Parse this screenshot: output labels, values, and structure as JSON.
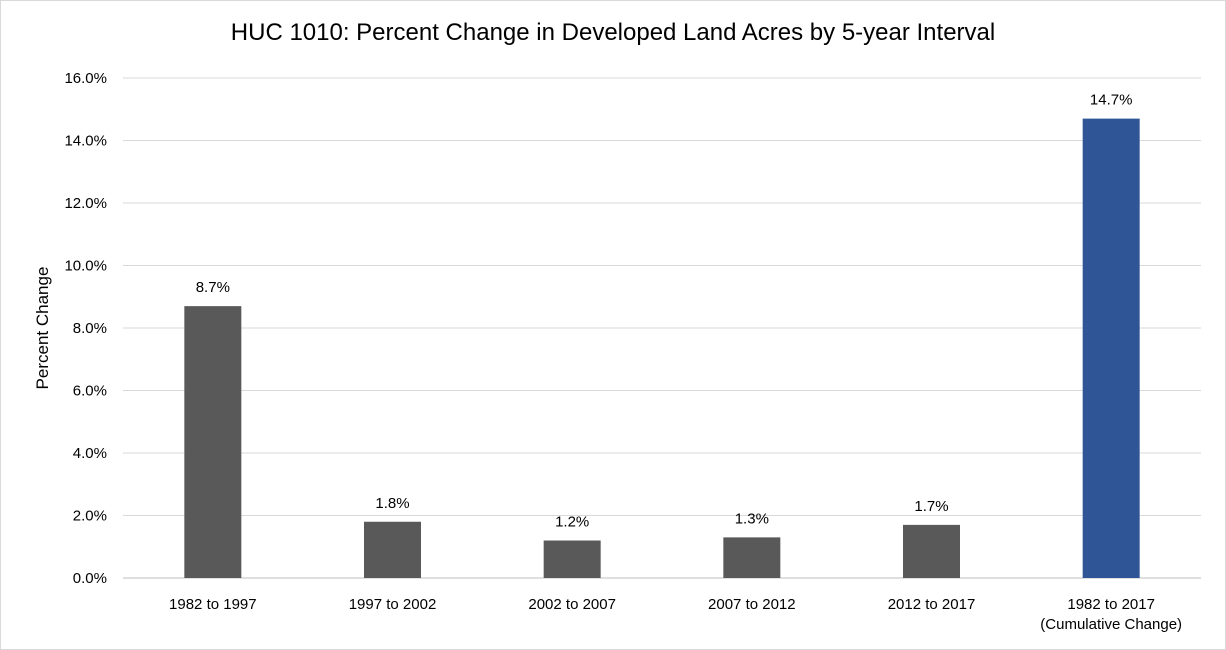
{
  "chart_data": {
    "type": "bar",
    "title": "HUC 1010: Percent Change in Developed Land Acres by 5-year Interval",
    "xlabel": "",
    "ylabel": "Percent Change",
    "categories": [
      [
        "1982  to 1997"
      ],
      [
        "1997  to 2002"
      ],
      [
        "2002  to 2007"
      ],
      [
        "2007  to 2012"
      ],
      [
        "2012  to 2017"
      ],
      [
        "1982 to 2017",
        "(Cumulative Change)"
      ]
    ],
    "values": [
      8.7,
      1.8,
      1.2,
      1.3,
      1.7,
      14.7
    ],
    "data_labels": [
      "8.7%",
      "1.8%",
      "1.2%",
      "1.3%",
      "1.7%",
      "14.7%"
    ],
    "bar_colors": [
      "#595959",
      "#595959",
      "#595959",
      "#595959",
      "#595959",
      "#2f5597"
    ],
    "ylim": [
      0,
      16
    ],
    "yticks": [
      0,
      2,
      4,
      6,
      8,
      10,
      12,
      14,
      16
    ],
    "ytick_labels": [
      "0.0%",
      "2.0%",
      "4.0%",
      "6.0%",
      "8.0%",
      "10.0%",
      "12.0%",
      "14.0%",
      "16.0%"
    ],
    "grid": true,
    "gridline_color": "#d9d9d9",
    "legend": "none"
  }
}
